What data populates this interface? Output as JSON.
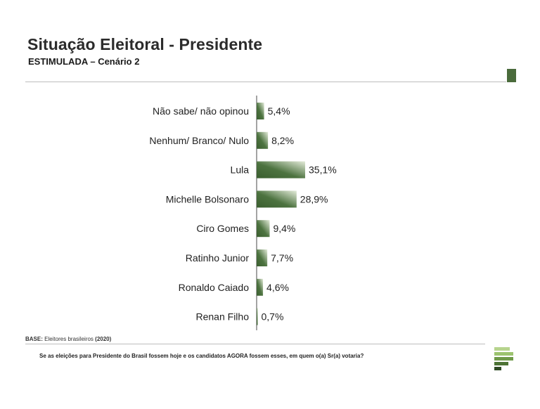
{
  "header": {
    "title": "Situação Eleitoral - Presidente",
    "subtitle": "ESTIMULADA – Cenário 2"
  },
  "chart_data": {
    "type": "bar",
    "orientation": "horizontal",
    "title": "Situação Eleitoral - Presidente",
    "subtitle": "ESTIMULADA – Cenário 2",
    "categories": [
      "Não sabe/ não opinou",
      "Nenhum/ Branco/ Nulo",
      "Lula",
      "Michelle Bolsonaro",
      "Ciro Gomes",
      "Ratinho Junior",
      "Ronaldo Caiado",
      "Renan Filho"
    ],
    "values": [
      5.4,
      8.2,
      35.1,
      28.9,
      9.4,
      7.7,
      4.6,
      0.7
    ],
    "value_labels": [
      "5,4%",
      "8,2%",
      "35,1%",
      "28,9%",
      "9,4%",
      "7,7%",
      "4,6%",
      "0,7%"
    ],
    "unit": "%",
    "xlim": [
      0,
      35.1
    ],
    "xlabel": "",
    "ylabel": "",
    "bar_color": "#3f6433",
    "bar_highlight": "#e2ead8"
  },
  "footer": {
    "base_prefix": "BASE:",
    "base_text": "Eleitores brasileiros",
    "base_year": "(2020)",
    "question": "Se as eleições para Presidente do Brasil fossem hoje e os candidatos AGORA fossem esses, em quem o(a) Sr(a) votaria?"
  },
  "brand": {
    "accent": "#4a6b3c",
    "logo_light": "#a8c97a",
    "logo_dark": "#2f4a25"
  }
}
